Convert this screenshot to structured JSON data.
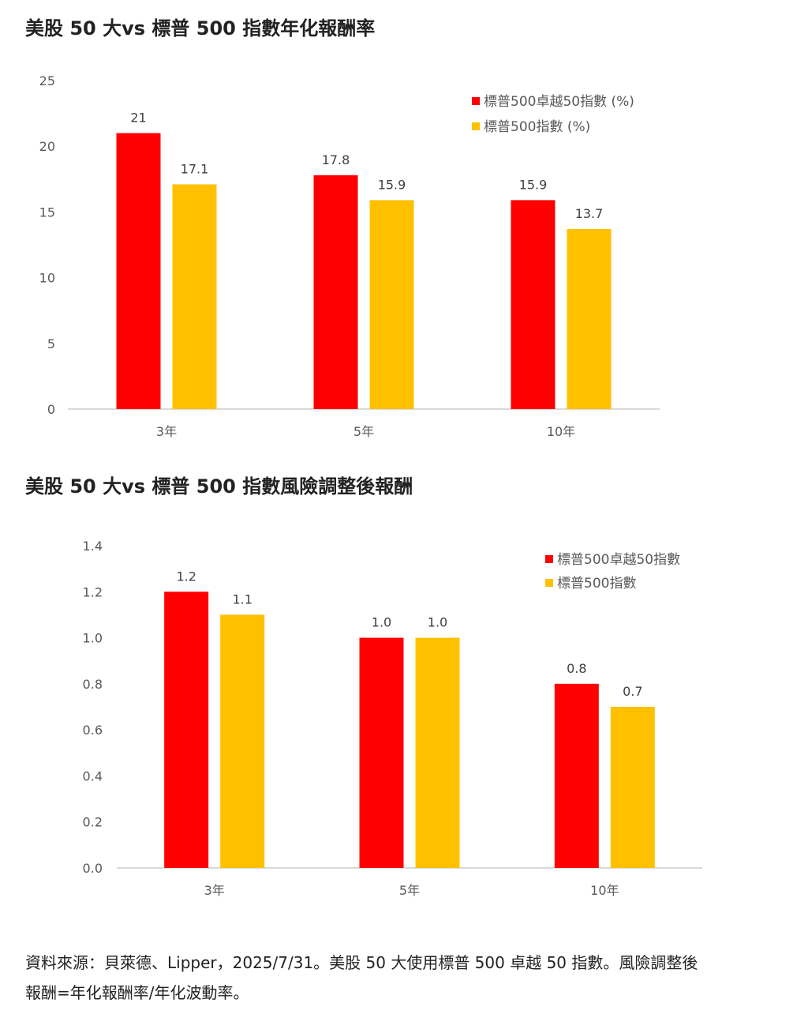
{
  "chart_data": [
    {
      "type": "bar",
      "title": "美股 50 大vs  標普 500 指數年化報酬率",
      "categories": [
        "3年",
        "5年",
        "10年"
      ],
      "series": [
        {
          "name": "標普500卓越50指數 (%)",
          "values": [
            21,
            17.8,
            15.9
          ],
          "labels": [
            "21",
            "17.8",
            "15.9"
          ],
          "color": "#FF0000"
        },
        {
          "name": "標普500指數 (%)",
          "values": [
            17.1,
            15.9,
            13.7
          ],
          "labels": [
            "17.1",
            "15.9",
            "13.7"
          ],
          "color": "#FFC000"
        }
      ],
      "ylim": [
        0,
        25
      ],
      "yticks": [
        "0",
        "5",
        "10",
        "15",
        "20",
        "25"
      ],
      "grid": false,
      "legend": "top-right"
    },
    {
      "type": "bar",
      "title": "美股 50 大vs  標普 500 指數風險調整後報酬",
      "categories": [
        "3年",
        "5年",
        "10年"
      ],
      "series": [
        {
          "name": "標普500卓越50指數",
          "values": [
            1.2,
            1.0,
            0.8
          ],
          "labels": [
            "1.2",
            "1.0",
            "0.8"
          ],
          "color": "#FF0000"
        },
        {
          "name": "標普500指數",
          "values": [
            1.1,
            1.0,
            0.7
          ],
          "labels": [
            "1.1",
            "1.0",
            "0.7"
          ],
          "color": "#FFC000"
        }
      ],
      "ylim": [
        0,
        1.4
      ],
      "yticks": [
        "0.0",
        "0.2",
        "0.4",
        "0.6",
        "0.8",
        "1.0",
        "1.2",
        "1.4"
      ],
      "grid": false,
      "legend": "top-right"
    }
  ],
  "footer": {
    "line1": "資料來源：貝萊德、Lipper，2025/7/31。美股 50 大使用標普 500 卓越 50 指數。風險調整後",
    "line2": "報酬=年化報酬率/年化波動率。"
  }
}
